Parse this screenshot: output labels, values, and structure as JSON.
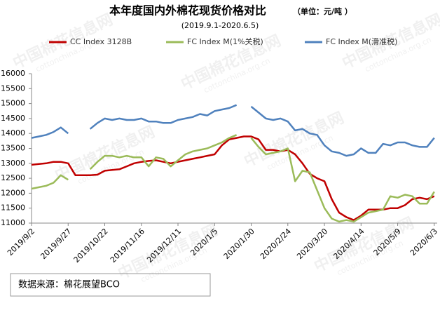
{
  "chart_data": {
    "type": "line",
    "title": "本年度国内外棉花现货价格对比",
    "unit_label": "（单位：元/吨 ）",
    "subtitle": "(2019.9.1-2020.6.5)",
    "source": "数据来源：棉花展望BCO",
    "watermark": [
      "中国棉花信息网",
      "cottonchina.org.cn"
    ],
    "x": [
      "2019/9/2",
      "2019/9/7",
      "2019/9/12",
      "2019/9/17",
      "2019/9/22",
      "2019/9/27",
      "2019/10/2",
      "2019/10/7",
      "2019/10/12",
      "2019/10/17",
      "2019/10/22",
      "2019/10/27",
      "2019/11/1",
      "2019/11/6",
      "2019/11/11",
      "2019/11/16",
      "2019/11/21",
      "2019/11/26",
      "2019/12/1",
      "2019/12/6",
      "2019/12/11",
      "2019/12/16",
      "2019/12/21",
      "2019/12/26",
      "2019/12/31",
      "2020/1/5",
      "2020/1/10",
      "2020/1/15",
      "2020/1/20",
      "2020/1/25",
      "2020/1/30",
      "2020/2/4",
      "2020/2/9",
      "2020/2/14",
      "2020/2/19",
      "2020/2/24",
      "2020/2/29",
      "2020/3/5",
      "2020/3/10",
      "2020/3/15",
      "2020/3/20",
      "2020/3/25",
      "2020/3/30",
      "2020/4/4",
      "2020/4/9",
      "2020/4/14",
      "2020/4/19",
      "2020/4/24",
      "2020/4/29",
      "2020/5/4",
      "2020/5/9",
      "2020/5/14",
      "2020/5/19",
      "2020/5/24",
      "2020/5/29",
      "2020/6/3"
    ],
    "series": [
      {
        "name": "CC Index 3128B",
        "color": "#c00000",
        "values": [
          12950,
          12980,
          13000,
          13050,
          13050,
          13000,
          12600,
          12600,
          12600,
          12620,
          12750,
          12780,
          12800,
          12900,
          13000,
          13050,
          13080,
          13100,
          13050,
          13000,
          13050,
          13100,
          13150,
          13200,
          13250,
          13300,
          13600,
          13800,
          13850,
          13900,
          13900,
          13800,
          13450,
          13450,
          13400,
          13450,
          13300,
          13000,
          12650,
          12500,
          12400,
          11800,
          11350,
          11200,
          11100,
          11250,
          11450,
          11450,
          11450,
          11500,
          11500,
          11600,
          11800,
          11850,
          11800,
          11900
        ]
      },
      {
        "name": "FC Index M(1%关税)",
        "color": "#9bbb59",
        "values": [
          12150,
          12200,
          12250,
          12350,
          12600,
          12450,
          null,
          null,
          12800,
          13050,
          13250,
          13250,
          13200,
          13250,
          13200,
          13200,
          12900,
          13200,
          13150,
          12900,
          13100,
          13300,
          13400,
          13450,
          13500,
          13600,
          13700,
          13850,
          13950,
          null,
          13850,
          13550,
          13300,
          13350,
          13400,
          13500,
          12400,
          12750,
          12700,
          12100,
          11500,
          11150,
          11050,
          11100,
          11050,
          11200,
          11350,
          11400,
          11450,
          11900,
          11850,
          11950,
          11900,
          11650,
          11650,
          12050
        ]
      },
      {
        "name": "FC Index M(滑准税)",
        "color": "#4f81bd",
        "values": [
          13850,
          13900,
          13950,
          14050,
          14200,
          14000,
          null,
          null,
          14150,
          14350,
          14500,
          14450,
          14500,
          14450,
          14450,
          14500,
          14400,
          14400,
          14350,
          14350,
          14450,
          14500,
          14550,
          14650,
          14600,
          14750,
          14800,
          14850,
          14950,
          null,
          14900,
          14700,
          14500,
          14450,
          14500,
          14400,
          14100,
          14150,
          14000,
          13950,
          13600,
          13400,
          13350,
          13250,
          13300,
          13500,
          13350,
          13350,
          13650,
          13600,
          13700,
          13700,
          13600,
          13550,
          13550,
          13850
        ]
      }
    ],
    "xlim": [
      "2019/9/2",
      "2020/6/5"
    ],
    "xticks": [
      "2019/9/2",
      "2019/9/27",
      "2019/10/22",
      "2019/11/16",
      "2019/12/11",
      "2020/1/5",
      "2020/1/30",
      "2020/2/24",
      "2020/3/20",
      "2020/4/14",
      "2020/5/9",
      "2020/6/3"
    ],
    "ylim": [
      11000,
      16000
    ],
    "yticks": [
      11000,
      11500,
      12000,
      12500,
      13000,
      13500,
      14000,
      14500,
      15000,
      15500,
      16000
    ],
    "grid": false
  }
}
